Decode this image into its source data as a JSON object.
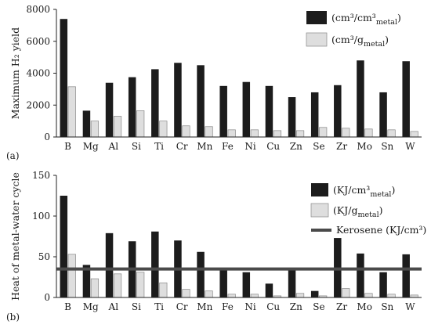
{
  "colors": {
    "dark": "#1c1c1c",
    "light": "#dedede",
    "line": "#4a4a4a"
  },
  "chart_data": [
    {
      "panel": "(a)",
      "type": "bar",
      "ylabel": "Maximum H₂ yield",
      "ylim": [
        0,
        8000
      ],
      "yticks": [
        0,
        2000,
        4000,
        6000,
        8000
      ],
      "categories": [
        "B",
        "Mg",
        "Al",
        "Si",
        "Ti",
        "Cr",
        "Mn",
        "Fe",
        "Ni",
        "Cu",
        "Zn",
        "Se",
        "Zr",
        "Mo",
        "Sn",
        "W"
      ],
      "series": [
        {
          "name": "(cm³/cm³metal)",
          "name_main": "(cm³/cm³",
          "name_sub": "metal",
          "name_end": ")",
          "color": "dark",
          "values": [
            7400,
            1650,
            3400,
            3750,
            4250,
            4650,
            4500,
            3200,
            3450,
            3200,
            2500,
            2800,
            3250,
            4800,
            2800,
            4750
          ]
        },
        {
          "name": "(cm³/gmetal)",
          "name_main": "(cm³/g",
          "name_sub": "metal",
          "name_end": ")",
          "color": "light",
          "values": [
            3150,
            1000,
            1300,
            1650,
            1000,
            700,
            650,
            450,
            450,
            400,
            400,
            600,
            550,
            500,
            450,
            350
          ]
        }
      ],
      "legend_position": "top-right"
    },
    {
      "panel": "(b)",
      "type": "bar",
      "ylabel": "Heat of metal-water cycle",
      "ylim": [
        0,
        150
      ],
      "yticks": [
        0,
        50,
        100,
        150
      ],
      "categories": [
        "B",
        "Mg",
        "Al",
        "Si",
        "Ti",
        "Cr",
        "Mn",
        "Fe",
        "Ni",
        "Cu",
        "Zn",
        "Se",
        "Zr",
        "Mo",
        "Sn",
        "W"
      ],
      "series": [
        {
          "name": "(KJ/cm³metal)",
          "name_main": "(KJ/cm³",
          "name_sub": "metal",
          "name_end": ")",
          "color": "dark",
          "values": [
            125,
            40,
            79,
            69,
            81,
            70,
            56,
            35,
            31,
            17,
            35,
            8,
            73,
            54,
            31,
            53
          ]
        },
        {
          "name": "(KJ/gmetal)",
          "name_main": "(KJ/g",
          "name_sub": "metal",
          "name_end": ")",
          "color": "light",
          "values": [
            53,
            23,
            29,
            31,
            18,
            10,
            8,
            4,
            4,
            2,
            5,
            2,
            11,
            5,
            4,
            3
          ]
        }
      ],
      "reference_line": {
        "name": "Kerosene (KJ/cm³)",
        "value": 35,
        "color": "line"
      },
      "legend_position": "top-right"
    }
  ]
}
